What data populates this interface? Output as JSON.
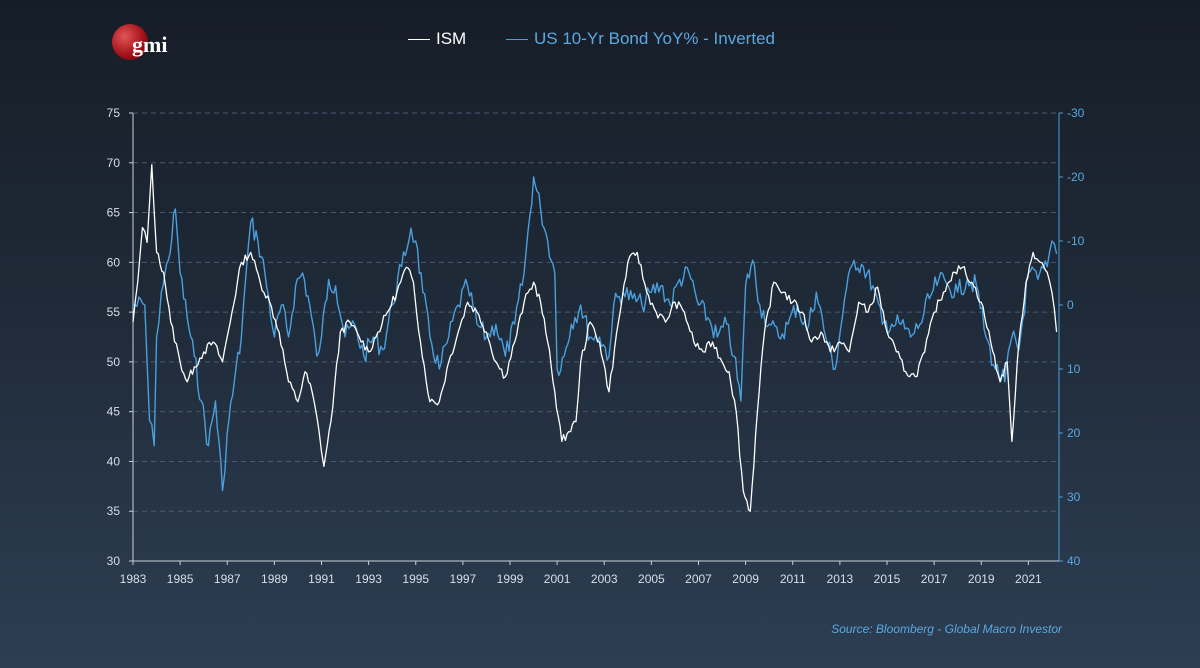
{
  "logo": {
    "text": "gmi"
  },
  "source": "Source: Bloomberg - Global Macro Investor",
  "chart_data": {
    "type": "line",
    "title": "",
    "xlabel": "",
    "ylabel": "",
    "x_range": [
      1983,
      2022.3
    ],
    "x_ticks": [
      "1983",
      "1985",
      "1987",
      "1989",
      "1991",
      "1993",
      "1995",
      "1997",
      "1999",
      "2001",
      "2003",
      "2005",
      "2007",
      "2009",
      "2011",
      "2013",
      "2015",
      "2017",
      "2019",
      "2021"
    ],
    "y_left": {
      "range": [
        30,
        75
      ],
      "ticks": [
        "30",
        "35",
        "40",
        "45",
        "50",
        "55",
        "60",
        "65",
        "70",
        "75"
      ]
    },
    "y_right": {
      "range": [
        40,
        -30
      ],
      "inverted": true,
      "ticks": [
        "40",
        "30",
        "20",
        "10",
        "0",
        "-10",
        "-20",
        "-30"
      ]
    },
    "grid": true,
    "legend_position": "top-center",
    "series": [
      {
        "name": "ISM",
        "axis": "left",
        "color": "#ffffff",
        "x": [
          1983.0,
          1983.2,
          1983.4,
          1983.6,
          1983.8,
          1984.0,
          1984.3,
          1984.6,
          1985.0,
          1985.3,
          1985.6,
          1986.0,
          1986.4,
          1986.8,
          1987.2,
          1987.6,
          1988.0,
          1988.4,
          1988.8,
          1989.2,
          1989.6,
          1990.0,
          1990.3,
          1990.6,
          1990.9,
          1991.1,
          1991.4,
          1991.8,
          1992.2,
          1992.6,
          1993.0,
          1993.4,
          1993.8,
          1994.2,
          1994.6,
          1994.9,
          1995.2,
          1995.6,
          1996.0,
          1996.4,
          1996.8,
          1997.2,
          1997.6,
          1998.0,
          1998.4,
          1998.8,
          1999.2,
          1999.6,
          2000.0,
          2000.3,
          2000.6,
          2000.9,
          2001.2,
          2001.5,
          2001.8,
          2002.0,
          2002.4,
          2002.8,
          2003.2,
          2003.6,
          2004.0,
          2004.4,
          2004.8,
          2005.2,
          2005.6,
          2006.0,
          2006.4,
          2006.8,
          2007.2,
          2007.6,
          2008.0,
          2008.3,
          2008.6,
          2008.9,
          2009.2,
          2009.5,
          2009.8,
          2010.2,
          2010.6,
          2011.0,
          2011.4,
          2011.8,
          2012.2,
          2012.6,
          2013.0,
          2013.4,
          2013.8,
          2014.2,
          2014.6,
          2015.0,
          2015.4,
          2015.8,
          2016.2,
          2016.6,
          2017.0,
          2017.4,
          2017.8,
          2018.2,
          2018.6,
          2019.0,
          2019.4,
          2019.8,
          2020.1,
          2020.3,
          2020.6,
          2020.9,
          2021.2,
          2021.5,
          2021.8,
          2022.0,
          2022.2
        ],
        "values": [
          54.0,
          58.0,
          63.5,
          62.0,
          69.8,
          61.0,
          59.0,
          54.0,
          50.0,
          48.0,
          49.5,
          51.0,
          52.0,
          50.0,
          55.0,
          60.0,
          61.0,
          58.0,
          56.0,
          53.0,
          48.0,
          46.0,
          49.0,
          47.0,
          43.0,
          39.5,
          44.0,
          53.0,
          54.0,
          52.5,
          51.0,
          53.0,
          55.0,
          57.0,
          59.5,
          58.0,
          52.0,
          46.0,
          46.0,
          50.0,
          53.0,
          56.0,
          55.0,
          53.0,
          50.0,
          48.5,
          52.0,
          56.0,
          58.0,
          56.0,
          52.0,
          47.0,
          42.0,
          43.0,
          44.0,
          50.0,
          54.0,
          52.0,
          47.0,
          54.0,
          60.0,
          61.0,
          57.0,
          55.0,
          54.0,
          56.0,
          55.0,
          52.0,
          51.0,
          52.0,
          50.0,
          49.0,
          45.0,
          37.0,
          35.0,
          45.0,
          53.0,
          58.0,
          57.0,
          56.0,
          55.0,
          52.0,
          53.0,
          51.0,
          52.0,
          51.0,
          56.0,
          55.0,
          57.5,
          53.0,
          51.0,
          49.0,
          48.5,
          51.0,
          55.0,
          57.0,
          59.0,
          59.5,
          58.0,
          56.0,
          52.0,
          48.0,
          50.0,
          42.0,
          52.0,
          58.0,
          61.0,
          60.0,
          59.0,
          57.0,
          53.0
        ]
      },
      {
        "name": "US 10-Yr Bond YoY% - Inverted",
        "axis": "right",
        "color": "#4a9fdc",
        "x": [
          1983.0,
          1983.5,
          1983.7,
          1983.9,
          1984.0,
          1984.2,
          1984.5,
          1984.8,
          1985.0,
          1985.3,
          1985.6,
          1985.9,
          1986.2,
          1986.5,
          1986.8,
          1987.0,
          1987.3,
          1987.6,
          1987.8,
          1988.0,
          1988.3,
          1988.6,
          1989.0,
          1989.3,
          1989.6,
          1989.9,
          1990.2,
          1990.5,
          1990.8,
          1991.0,
          1991.3,
          1991.6,
          1992.0,
          1992.4,
          1992.8,
          1993.2,
          1993.6,
          1994.0,
          1994.4,
          1994.8,
          1995.0,
          1995.3,
          1995.6,
          1996.0,
          1996.4,
          1996.8,
          1997.2,
          1997.6,
          1998.0,
          1998.4,
          1998.8,
          1999.2,
          1999.6,
          2000.0,
          2000.3,
          2000.6,
          2000.9,
          2001.0,
          2001.3,
          2001.6,
          2002.0,
          2002.4,
          2002.8,
          2003.2,
          2003.4,
          2003.8,
          2004.2,
          2004.6,
          2005.0,
          2005.4,
          2005.8,
          2006.2,
          2006.6,
          2007.0,
          2007.4,
          2007.8,
          2008.2,
          2008.5,
          2008.8,
          2009.0,
          2009.3,
          2009.6,
          2010.0,
          2010.4,
          2010.8,
          2011.2,
          2011.6,
          2012.0,
          2012.4,
          2012.8,
          2013.2,
          2013.6,
          2014.0,
          2014.4,
          2014.8,
          2015.2,
          2015.6,
          2016.0,
          2016.4,
          2016.8,
          2017.2,
          2017.6,
          2018.0,
          2018.4,
          2018.8,
          2019.2,
          2019.6,
          2020.0,
          2020.3,
          2020.6,
          2021.0,
          2021.4,
          2021.8,
          2022.0,
          2022.2
        ],
        "values": [
          0.0,
          0.0,
          18.0,
          22.0,
          5.0,
          -2.0,
          -7.0,
          -15.0,
          -5.0,
          2.0,
          8.0,
          15.0,
          22.0,
          15.0,
          29.0,
          20.0,
          12.0,
          5.0,
          -5.0,
          -13.0,
          -10.0,
          -5.0,
          5.0,
          0.0,
          5.0,
          -3.0,
          -5.0,
          0.0,
          8.0,
          5.0,
          -4.0,
          -3.0,
          5.0,
          3.0,
          8.0,
          5.0,
          7.0,
          0.0,
          -6.0,
          -12.0,
          -10.0,
          -2.0,
          5.0,
          10.0,
          5.0,
          0.0,
          -3.0,
          3.0,
          5.0,
          3.0,
          8.0,
          3.0,
          -5.0,
          -20.0,
          -15.0,
          -10.0,
          -5.0,
          10.0,
          8.0,
          3.0,
          0.0,
          5.0,
          5.0,
          8.0,
          0.0,
          -2.0,
          -1.0,
          0.0,
          -2.0,
          -3.0,
          0.0,
          -4.0,
          -5.0,
          0.0,
          2.0,
          5.0,
          3.0,
          8.0,
          15.0,
          -3.0,
          -7.0,
          0.0,
          3.0,
          5.0,
          3.0,
          0.0,
          4.0,
          -2.0,
          5.0,
          10.0,
          -1.0,
          -7.0,
          -6.0,
          -3.0,
          3.0,
          3.0,
          3.0,
          5.0,
          3.0,
          -1.0,
          -4.0,
          -3.0,
          -2.0,
          -4.0,
          -3.0,
          5.0,
          10.0,
          12.0,
          5.0,
          7.0,
          -5.0,
          -4.0,
          -6.0,
          -10.0,
          -8.0
        ]
      }
    ]
  }
}
